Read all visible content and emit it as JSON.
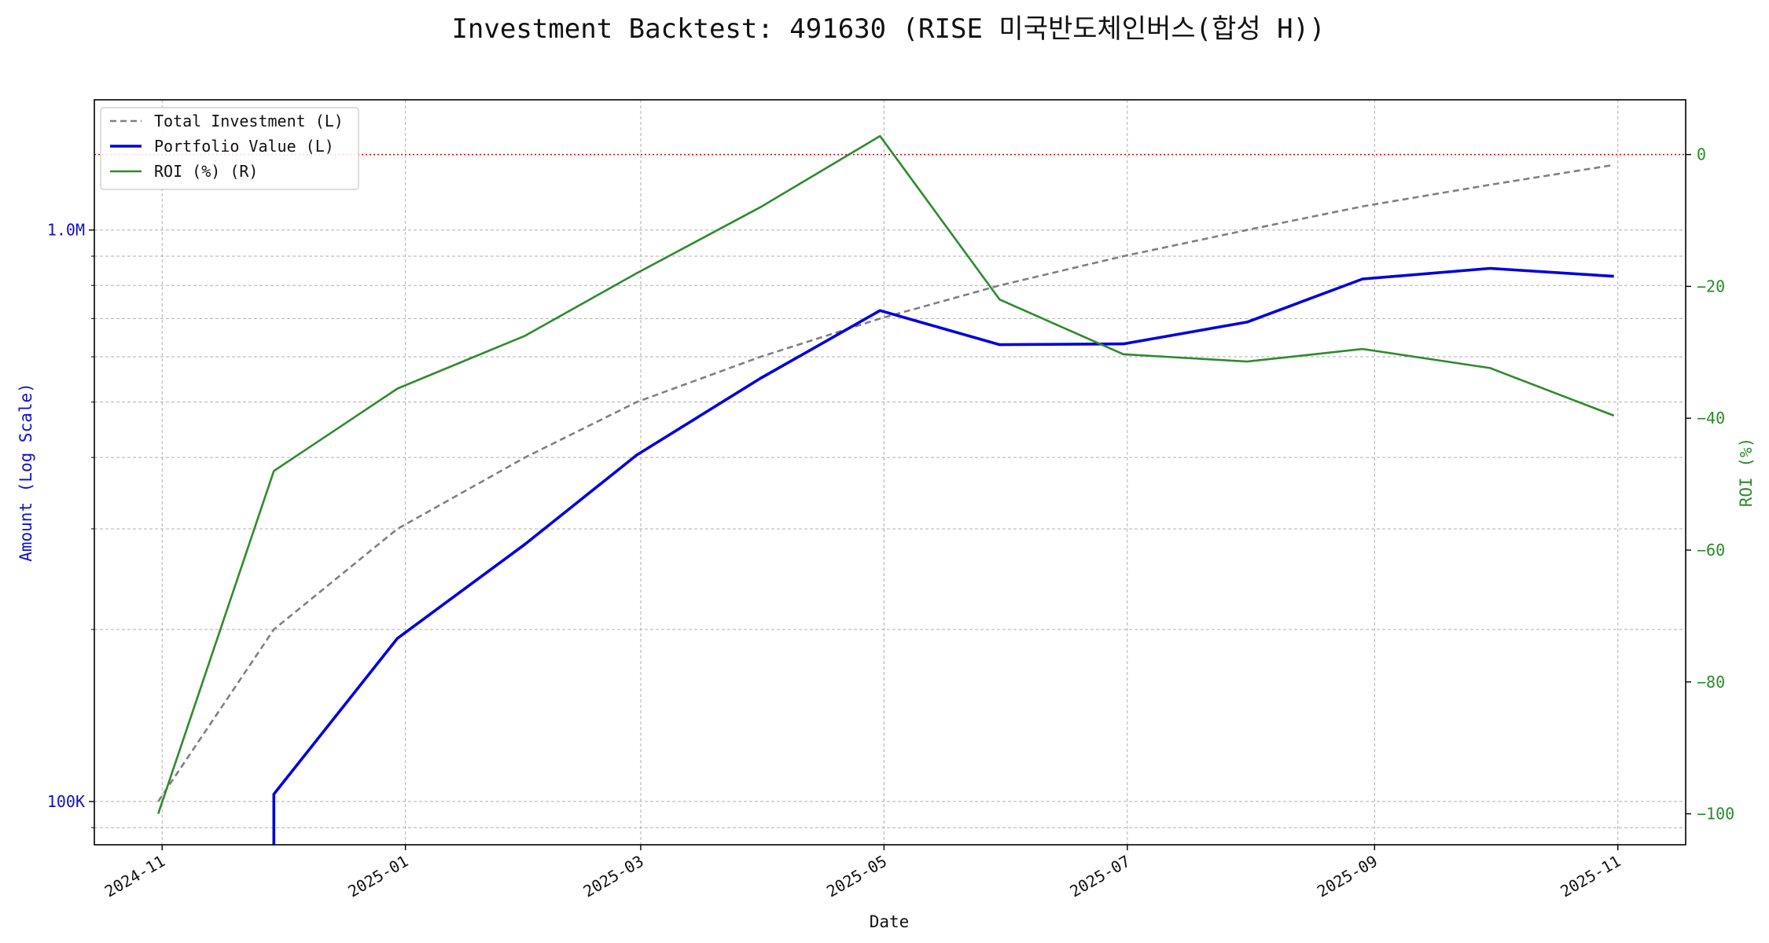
{
  "chart_data": {
    "type": "line",
    "title": "Investment Backtest: 491630 (RISE 미국반도체인버스(합성 H))",
    "xlabel": "Date",
    "ylabel_left": "Amount (Log Scale)",
    "ylabel_right": "ROI (%)",
    "y_left_scale": "log",
    "y_left_range": [
      84000,
      1690000
    ],
    "y_right_range": [
      -104.7,
      8.3
    ],
    "x_range": [
      "2024-10-15",
      "2025-11-18"
    ],
    "grid": true,
    "legend_position": "top-left",
    "x_ticks": [
      "2024-11",
      "2025-01",
      "2025-03",
      "2025-05",
      "2025-07",
      "2025-09",
      "2025-11"
    ],
    "x_tick_dates": [
      "2024-11-01",
      "2025-01-01",
      "2025-03-01",
      "2025-05-01",
      "2025-07-01",
      "2025-09-01",
      "2025-11-01"
    ],
    "y_left_ticks": [
      {
        "label": "100K",
        "value": 100000
      },
      {
        "label": "1.0M",
        "value": 1000000
      }
    ],
    "y_left_minor_ticks": [
      200000,
      300000,
      400000,
      500000,
      600000,
      700000,
      800000,
      900000
    ],
    "y_right_ticks": [
      0,
      -20,
      -40,
      -60,
      -80,
      -100
    ],
    "reference_line": {
      "axis": "right",
      "value": 0,
      "color": "#dd0000"
    },
    "colors": {
      "total_investment": "#808080",
      "portfolio_value": "#0000dd",
      "roi": "#2e8b2e",
      "left_axis": "#1010cc",
      "right_axis": "#2a8a2a"
    },
    "series": [
      {
        "name": "Total Investment (L)",
        "axis": "left",
        "style": "dashed",
        "x": [
          "2024-10-31",
          "2024-11-29",
          "2024-12-30",
          "2025-01-31",
          "2025-02-28",
          "2025-03-31",
          "2025-04-30",
          "2025-05-30",
          "2025-06-30",
          "2025-07-31",
          "2025-08-29",
          "2025-09-30",
          "2025-10-31"
        ],
        "values": [
          100000,
          200000,
          300000,
          400000,
          500000,
          600000,
          700000,
          800000,
          900000,
          1000000,
          1100000,
          1200000,
          1300000
        ]
      },
      {
        "name": "Portfolio Value (L)",
        "axis": "left",
        "style": "solid",
        "x": [
          "2024-11-29",
          "2024-11-29",
          "2024-12-30",
          "2025-01-31",
          "2025-02-28",
          "2025-03-31",
          "2025-04-30",
          "2025-05-30",
          "2025-06-30",
          "2025-07-31",
          "2025-08-29",
          "2025-09-30",
          "2025-10-31"
        ],
        "values": [
          84000,
          103000,
          193000,
          282000,
          404000,
          550000,
          723000,
          630000,
          632000,
          690000,
          821000,
          857000,
          830000
        ]
      },
      {
        "name": "ROI (%) (R)",
        "axis": "right",
        "style": "solid",
        "x": [
          "2024-10-31",
          "2024-11-29",
          "2024-12-30",
          "2025-01-31",
          "2025-02-28",
          "2025-03-31",
          "2025-04-30",
          "2025-05-30",
          "2025-06-30",
          "2025-07-31",
          "2025-08-29",
          "2025-09-30",
          "2025-10-31"
        ],
        "values": [
          -100,
          -48,
          -35.5,
          -27.5,
          -18,
          -8,
          2.8,
          -22,
          -30.3,
          -31.4,
          -29.5,
          -32.4,
          -39.6
        ]
      }
    ]
  }
}
